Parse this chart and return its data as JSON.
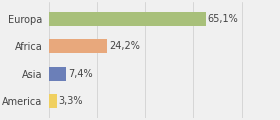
{
  "categories": [
    "Europa",
    "Africa",
    "Asia",
    "America"
  ],
  "values": [
    65.1,
    24.2,
    7.4,
    3.3
  ],
  "labels": [
    "65,1%",
    "24,2%",
    "7,4%",
    "3,3%"
  ],
  "bar_colors": [
    "#a8c07a",
    "#e8a87c",
    "#6b7fb8",
    "#f0d060"
  ],
  "background_color": "#f0f0f0",
  "bar_height": 0.5,
  "xlim": [
    0,
    95
  ],
  "label_fontsize": 7.0,
  "tick_fontsize": 7.0,
  "figsize": [
    2.8,
    1.2
  ],
  "dpi": 100
}
